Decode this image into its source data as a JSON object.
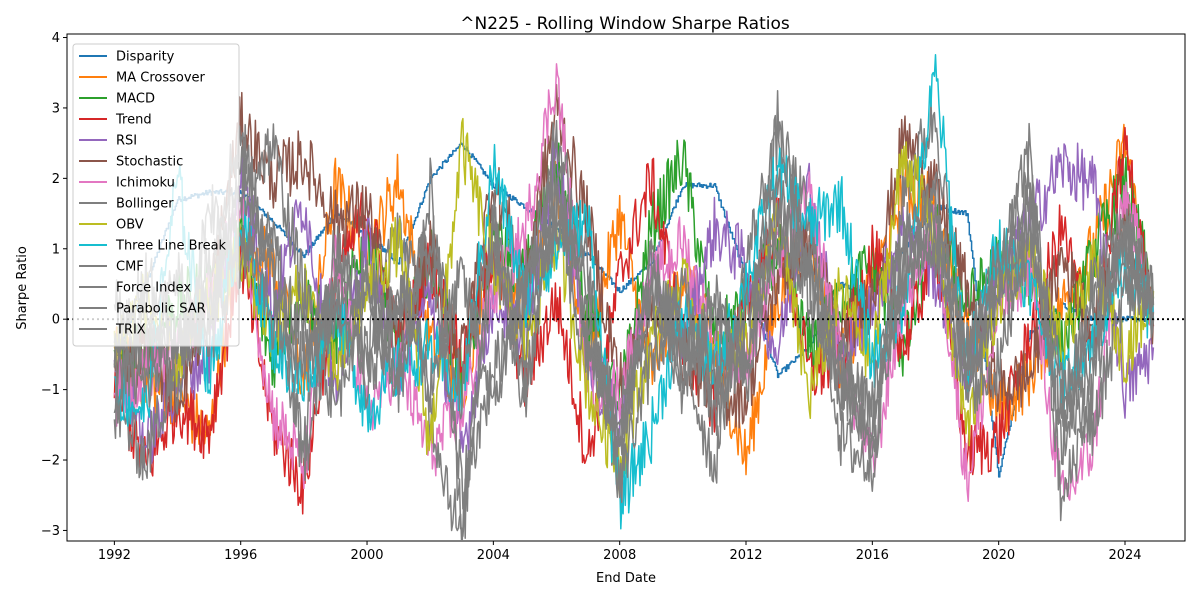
{
  "chart_data": {
    "type": "line",
    "title": "^N225 - Rolling Window Sharpe Ratios",
    "xlabel": "End Date",
    "ylabel": "Sharpe Ratio",
    "x_ticks": [
      "1992",
      "1996",
      "2000",
      "2004",
      "2008",
      "2012",
      "2016",
      "2020",
      "2024"
    ],
    "y_ticks": [
      "−3",
      "−2",
      "−1",
      "0",
      "1",
      "2",
      "3",
      "4"
    ],
    "xlim": [
      1990.5,
      2025.9
    ],
    "ylim": [
      -3.15,
      4.05
    ],
    "grid": false,
    "legend_position": "top-left",
    "reference_line": {
      "y": 0,
      "style": "dotted",
      "color": "#000000"
    },
    "x": [
      1992,
      1993,
      1994,
      1995,
      1996,
      1997,
      1998,
      1999,
      2000,
      2001,
      2002,
      2003,
      2004,
      2005,
      2006,
      2007,
      2008,
      2009,
      2010,
      2011,
      2012,
      2013,
      2014,
      2015,
      2016,
      2017,
      2018,
      2019,
      2020,
      2021,
      2022,
      2023,
      2024,
      2024.9
    ],
    "series": [
      {
        "name": "Disparity",
        "color": "#1f77b4",
        "values": [
          -0.6,
          0.5,
          1.7,
          1.8,
          1.8,
          1.4,
          0.9,
          1.5,
          1.2,
          0.8,
          2.0,
          2.5,
          1.9,
          1.6,
          1.3,
          0.9,
          0.4,
          0.8,
          1.9,
          1.9,
          0.6,
          -0.8,
          -0.4,
          0.5,
          0.3,
          1.0,
          1.6,
          1.5,
          -2.2,
          -0.2,
          0.2,
          0.0,
          0.0,
          0.0
        ]
      },
      {
        "name": "MA Crossover",
        "color": "#ff7f0e",
        "values": [
          -0.5,
          -0.9,
          -1.1,
          -1.7,
          1.2,
          0.8,
          -0.9,
          1.9,
          0.9,
          2.0,
          -0.3,
          -1.0,
          1.1,
          0.1,
          1.9,
          -0.5,
          1.5,
          -0.8,
          0.7,
          -0.4,
          -2.0,
          0.3,
          1.2,
          -0.6,
          0.4,
          1.9,
          1.6,
          -0.2,
          -1.3,
          -0.8,
          0.2,
          1.0,
          2.5,
          0.0
        ]
      },
      {
        "name": "MACD",
        "color": "#2ca02c",
        "values": [
          -0.8,
          -0.4,
          0.2,
          0.5,
          1.1,
          -0.6,
          0.4,
          -0.3,
          1.3,
          -0.5,
          0.9,
          -0.9,
          1.2,
          0.6,
          2.3,
          0.1,
          -1.2,
          1.3,
          2.3,
          -0.3,
          0.2,
          1.0,
          -0.4,
          0.3,
          0.8,
          -0.5,
          1.3,
          0.2,
          0.8,
          0.6,
          -0.4,
          0.9,
          2.0,
          0.3
        ]
      },
      {
        "name": "Trend",
        "color": "#d62728",
        "values": [
          -0.9,
          -2.1,
          -1.2,
          -1.6,
          0.9,
          -1.5,
          -2.4,
          0.5,
          1.6,
          -0.4,
          0.8,
          -0.6,
          1.0,
          -0.9,
          0.3,
          -2.0,
          0.6,
          2.0,
          -0.3,
          -1.2,
          0.2,
          1.5,
          -0.8,
          -0.6,
          1.0,
          -0.4,
          1.0,
          -1.9,
          -1.7,
          -0.2,
          1.3,
          -0.4,
          2.5,
          -0.1
        ]
      },
      {
        "name": "RSI",
        "color": "#9467bd",
        "values": [
          -0.3,
          -1.8,
          -0.9,
          -0.5,
          2.1,
          0.2,
          1.7,
          -1.1,
          1.2,
          -0.8,
          0.4,
          -1.9,
          0.3,
          -0.2,
          2.4,
          -0.7,
          -1.5,
          0.6,
          -0.3,
          1.3,
          0.8,
          -0.5,
          1.9,
          -0.6,
          0.2,
          1.3,
          0.6,
          -0.8,
          0.5,
          1.4,
          2.2,
          1.9,
          -1.0,
          -0.4
        ]
      },
      {
        "name": "Stochastic",
        "color": "#8c564b",
        "values": [
          -0.9,
          -0.4,
          -1.1,
          0.2,
          2.8,
          2.0,
          2.3,
          1.4,
          1.6,
          -0.3,
          1.0,
          -0.5,
          2.0,
          0.6,
          3.0,
          1.4,
          -0.9,
          0.2,
          -0.5,
          -1.1,
          -1.1,
          0.6,
          1.1,
          -0.2,
          0.3,
          2.6,
          1.8,
          0.4,
          -1.0,
          -0.8,
          0.9,
          -0.2,
          1.6,
          0.0
        ]
      },
      {
        "name": "Ichimoku",
        "color": "#e377c2",
        "values": [
          -1.1,
          -0.7,
          -0.5,
          0.3,
          1.5,
          -1.3,
          -2.1,
          0.8,
          -1.3,
          -0.6,
          -1.9,
          -1.3,
          0.4,
          1.2,
          3.5,
          -0.9,
          -1.0,
          0.5,
          1.1,
          -0.4,
          -0.6,
          0.9,
          1.7,
          -0.5,
          -2.1,
          0.3,
          1.4,
          -2.3,
          0.1,
          0.8,
          -2.6,
          -1.8,
          1.8,
          0.1
        ]
      },
      {
        "name": "Bollinger",
        "color": "#7f7f7f",
        "values": [
          -1.2,
          -2.0,
          -0.5,
          0.9,
          2.7,
          0.5,
          -1.8,
          1.1,
          -0.6,
          1.4,
          -1.3,
          -3.2,
          1.5,
          -1.2,
          2.8,
          0.4,
          -2.4,
          0.7,
          -0.5,
          -2.1,
          0.8,
          2.6,
          1.4,
          -1.7,
          -2.1,
          1.9,
          2.9,
          -0.8,
          0.4,
          2.5,
          -2.7,
          -0.9,
          1.3,
          0.2
        ]
      },
      {
        "name": "OBV",
        "color": "#bcbd22",
        "values": [
          -0.4,
          0.3,
          -0.6,
          0.2,
          0.9,
          -0.2,
          0.5,
          -0.8,
          0.4,
          1.1,
          -1.8,
          2.5,
          0.8,
          -0.4,
          1.2,
          -1.0,
          -2.1,
          -0.3,
          0.5,
          -0.6,
          -0.3,
          1.4,
          -1.1,
          0.4,
          -0.6,
          2.4,
          1.2,
          -1.6,
          0.3,
          1.0,
          -0.5,
          0.7,
          -0.5,
          0.4
        ]
      },
      {
        "name": "Three Line Break",
        "color": "#17becf",
        "values": [
          -1.0,
          -1.3,
          2.0,
          -0.9,
          1.5,
          -0.3,
          -1.0,
          0.2,
          -1.3,
          -0.7,
          -0.4,
          -1.1,
          2.2,
          0.3,
          1.0,
          1.4,
          -2.6,
          -1.6,
          0.1,
          -0.8,
          0.5,
          2.1,
          1.3,
          1.7,
          -0.6,
          0.3,
          3.5,
          -0.7,
          1.1,
          0.5,
          -0.9,
          -0.3,
          0.8,
          0.0
        ]
      },
      {
        "name": "CMF",
        "color": "#7f7f7f",
        "values": [
          -0.6,
          -1.0,
          -0.3,
          0.1,
          1.8,
          2.5,
          0.4,
          -1.3,
          0.7,
          -0.8,
          0.9,
          -2.4,
          -0.8,
          0.6,
          2.2,
          -0.2,
          -1.8,
          0.9,
          -1.1,
          0.3,
          -0.8,
          2.8,
          0.6,
          -1.0,
          -1.6,
          1.4,
          1.0,
          -0.4,
          0.9,
          2.0,
          -1.9,
          0.6,
          1.2,
          0.0
        ]
      },
      {
        "name": "Force Index",
        "color": "#7f7f7f",
        "values": [
          0.2,
          -0.5,
          0.6,
          -0.4,
          1.2,
          0.0,
          -0.6,
          0.3,
          -1.0,
          0.5,
          -0.9,
          0.6,
          -1.2,
          0.4,
          1.3,
          -0.5,
          -1.3,
          0.2,
          -0.7,
          0.2,
          -0.9,
          1.6,
          0.3,
          -0.9,
          -1.2,
          0.6,
          1.5,
          -0.5,
          0.4,
          1.1,
          -1.3,
          0.2,
          0.9,
          0.1
        ]
      },
      {
        "name": "Parabolic SAR",
        "color": "#7f7f7f",
        "values": [
          -1.4,
          0.4,
          -1.2,
          1.7,
          0.8,
          1.4,
          -2.2,
          0.6,
          0.5,
          -1.1,
          1.9,
          -2.8,
          0.9,
          -0.9,
          1.6,
          0.8,
          -2.3,
          -0.6,
          0.4,
          -1.4,
          0.1,
          1.9,
          0.9,
          -0.4,
          -1.5,
          0.8,
          1.8,
          -1.0,
          -0.7,
          1.6,
          -1.5,
          -0.5,
          1.4,
          0.3
        ]
      },
      {
        "name": "TRIX",
        "color": "#7f7f7f",
        "values": [
          -0.5,
          0.6,
          -0.4,
          0.1,
          2.1,
          0.9,
          -0.3,
          0.2,
          -0.6,
          0.3,
          1.3,
          -1.1,
          1.3,
          -0.5,
          1.7,
          -0.3,
          -1.6,
          0.4,
          -0.2,
          -0.9,
          -0.5,
          1.2,
          0.6,
          -0.8,
          -1.9,
          0.9,
          1.1,
          -1.1,
          0.6,
          1.6,
          -0.9,
          -1.6,
          0.4,
          0.2
        ]
      }
    ]
  }
}
